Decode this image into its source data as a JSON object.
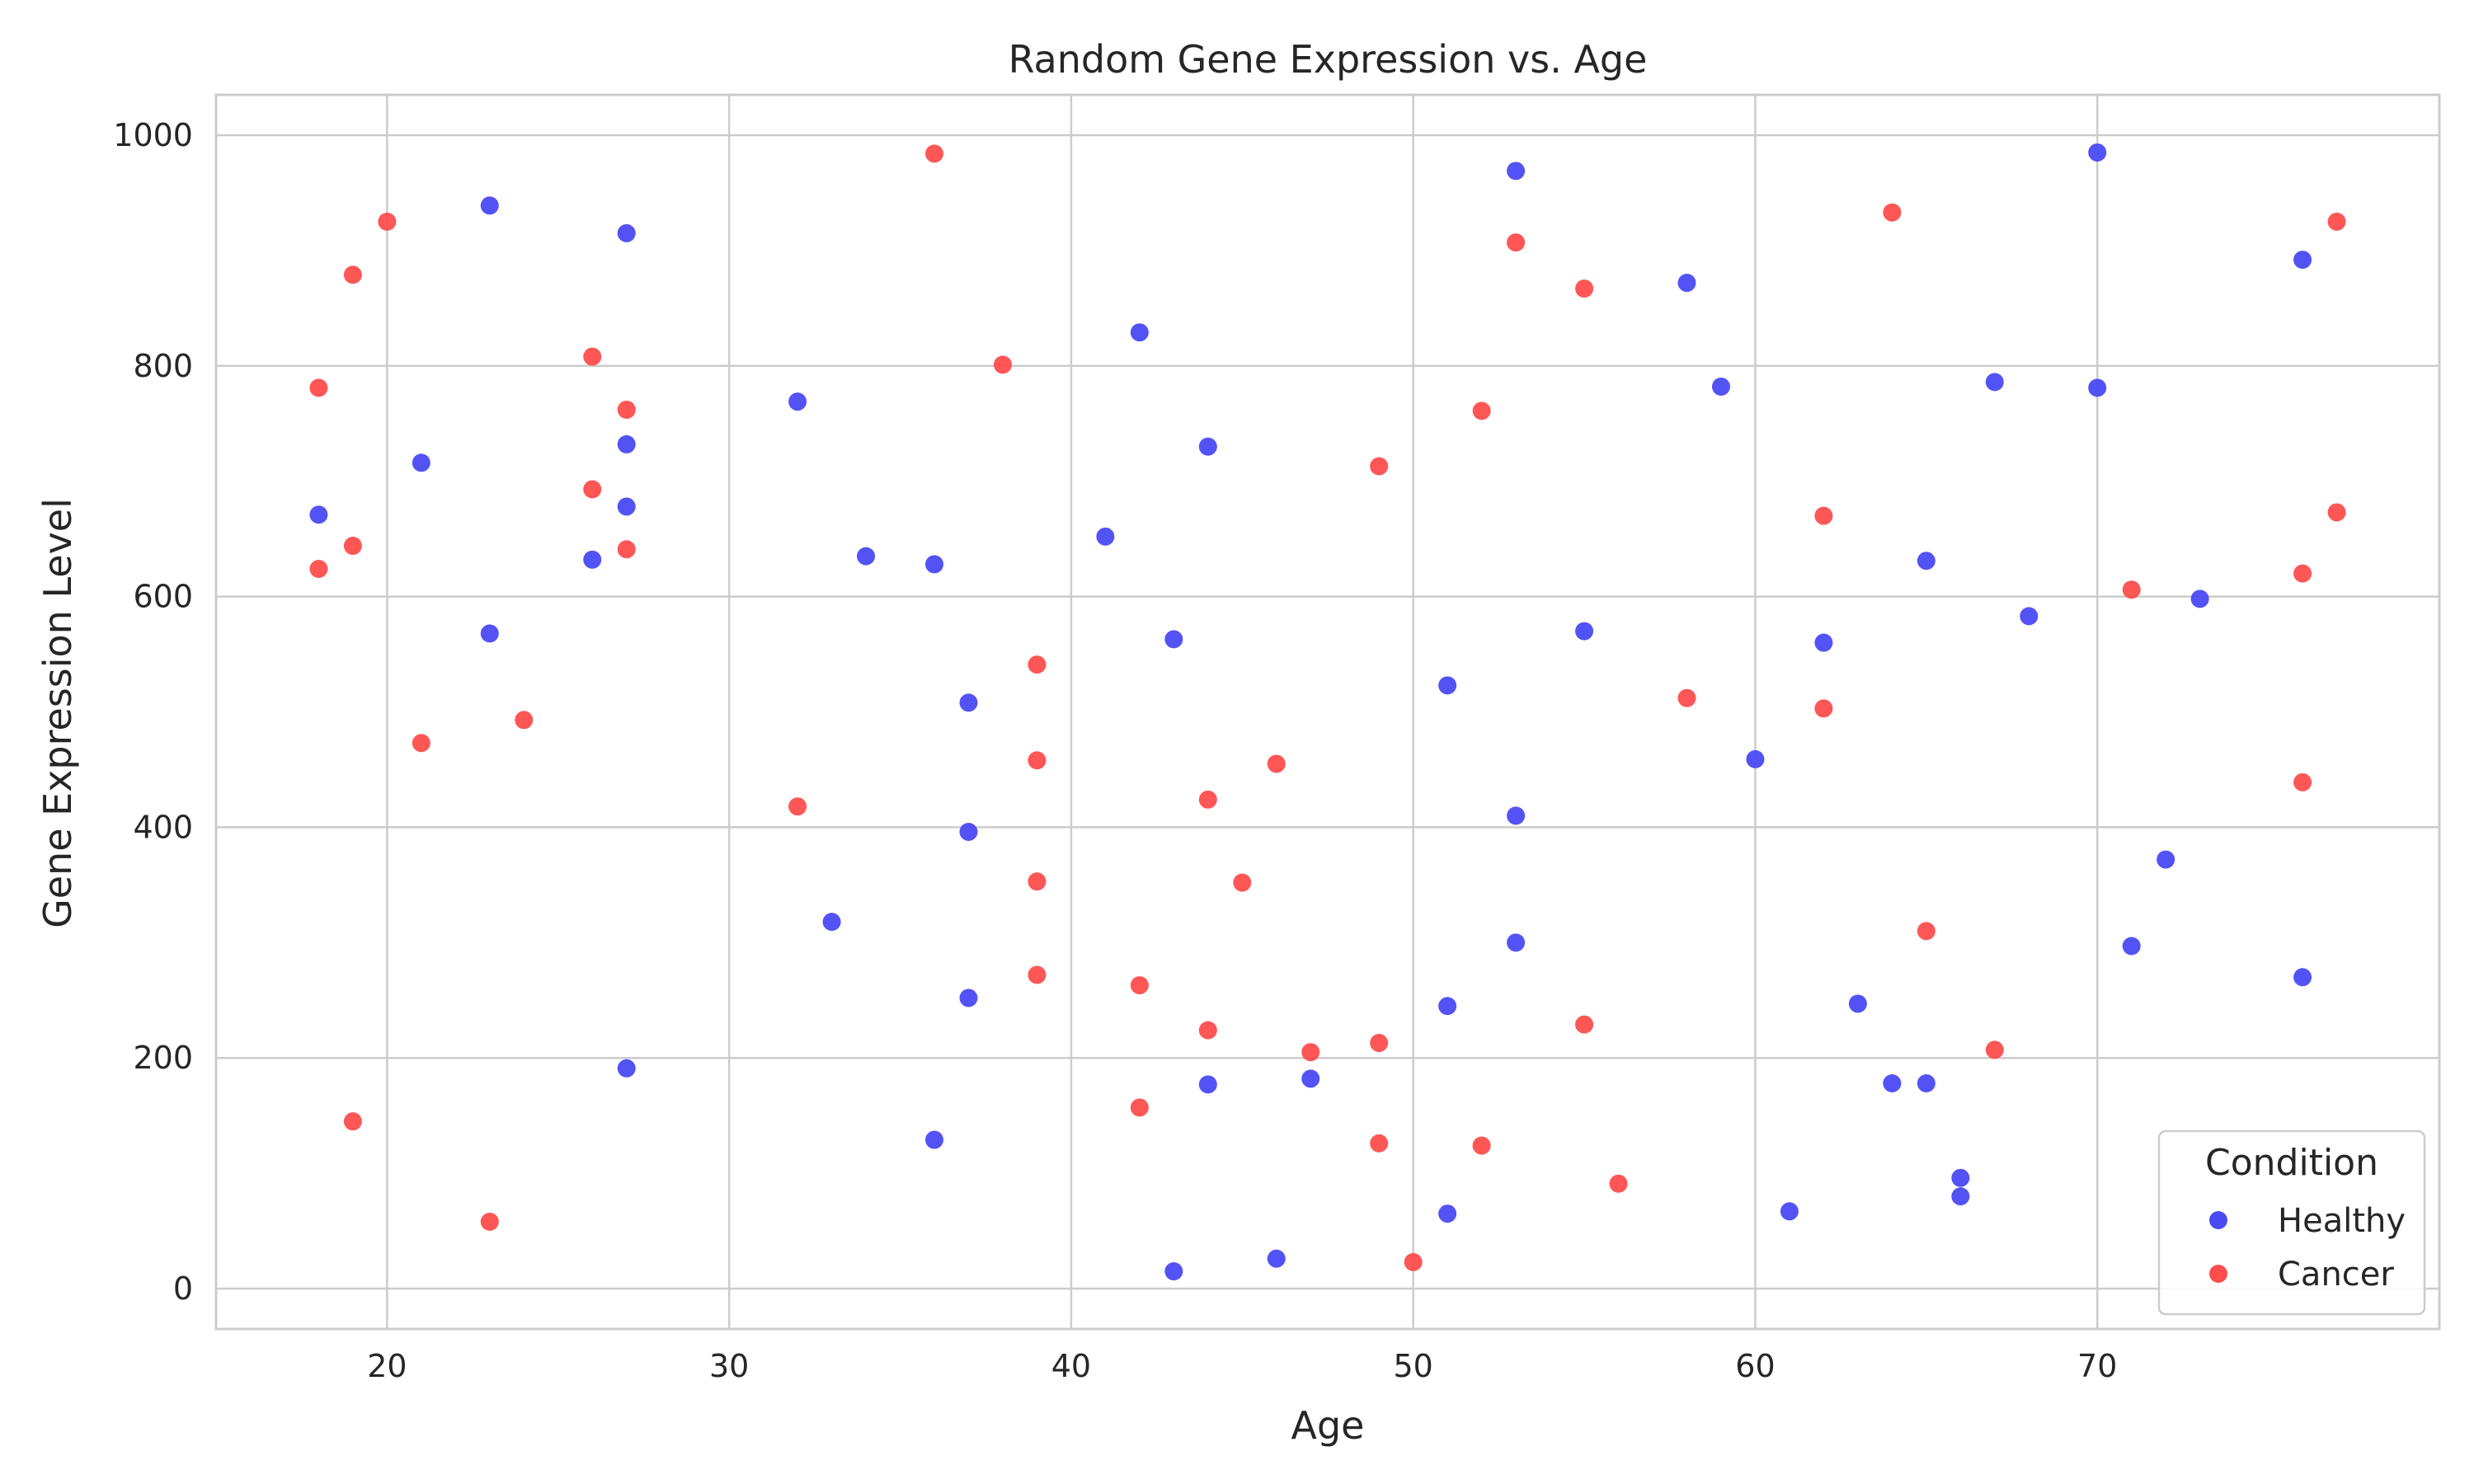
{
  "chart_data": {
    "type": "scatter",
    "title": "Random Gene Expression vs. Age",
    "xlabel": "Age",
    "ylabel": "Gene Expression Level",
    "xlim": [
      15,
      80
    ],
    "ylim": [
      -35,
      1035
    ],
    "xticks": [
      20,
      30,
      40,
      50,
      60,
      70
    ],
    "yticks": [
      0,
      200,
      400,
      600,
      800,
      1000
    ],
    "grid": true,
    "legend": {
      "title": "Condition",
      "position": "bottom-right"
    },
    "series": [
      {
        "name": "Healthy",
        "color": "#4a4af4",
        "points": [
          [
            18,
            671
          ],
          [
            21,
            716
          ],
          [
            23,
            939
          ],
          [
            23,
            568
          ],
          [
            26,
            632
          ],
          [
            27,
            915
          ],
          [
            27,
            732
          ],
          [
            27,
            678
          ],
          [
            27,
            191
          ],
          [
            32,
            769
          ],
          [
            33,
            318
          ],
          [
            34,
            635
          ],
          [
            36,
            628
          ],
          [
            36,
            129
          ],
          [
            37,
            508
          ],
          [
            37,
            396
          ],
          [
            37,
            252
          ],
          [
            41,
            652
          ],
          [
            42,
            829
          ],
          [
            43,
            563
          ],
          [
            43,
            15
          ],
          [
            44,
            730
          ],
          [
            44,
            177
          ],
          [
            46,
            26
          ],
          [
            47,
            182
          ],
          [
            51,
            523
          ],
          [
            51,
            245
          ],
          [
            51,
            65
          ],
          [
            53,
            969
          ],
          [
            53,
            410
          ],
          [
            53,
            300
          ],
          [
            55,
            570
          ],
          [
            58,
            872
          ],
          [
            59,
            782
          ],
          [
            60,
            459
          ],
          [
            61,
            67
          ],
          [
            62,
            560
          ],
          [
            63,
            247
          ],
          [
            64,
            178
          ],
          [
            65,
            631
          ],
          [
            65,
            178
          ],
          [
            66,
            96
          ],
          [
            66,
            80
          ],
          [
            67,
            786
          ],
          [
            68,
            583
          ],
          [
            70,
            985
          ],
          [
            70,
            781
          ],
          [
            71,
            297
          ],
          [
            72,
            372
          ],
          [
            73,
            598
          ],
          [
            76,
            892
          ],
          [
            76,
            270
          ]
        ]
      },
      {
        "name": "Cancer",
        "color": "#ff4d4d",
        "points": [
          [
            18,
            781
          ],
          [
            18,
            624
          ],
          [
            19,
            879
          ],
          [
            19,
            644
          ],
          [
            19,
            145
          ],
          [
            20,
            925
          ],
          [
            21,
            473
          ],
          [
            23,
            58
          ],
          [
            24,
            493
          ],
          [
            26,
            808
          ],
          [
            26,
            693
          ],
          [
            27,
            762
          ],
          [
            27,
            641
          ],
          [
            32,
            418
          ],
          [
            36,
            984
          ],
          [
            38,
            801
          ],
          [
            39,
            541
          ],
          [
            39,
            458
          ],
          [
            39,
            353
          ],
          [
            39,
            272
          ],
          [
            42,
            263
          ],
          [
            42,
            157
          ],
          [
            44,
            424
          ],
          [
            44,
            224
          ],
          [
            45,
            352
          ],
          [
            46,
            455
          ],
          [
            47,
            205
          ],
          [
            49,
            713
          ],
          [
            49,
            213
          ],
          [
            49,
            126
          ],
          [
            50,
            23
          ],
          [
            52,
            761
          ],
          [
            52,
            124
          ],
          [
            53,
            907
          ],
          [
            55,
            867
          ],
          [
            55,
            229
          ],
          [
            56,
            91
          ],
          [
            58,
            512
          ],
          [
            62,
            670
          ],
          [
            62,
            503
          ],
          [
            64,
            933
          ],
          [
            65,
            310
          ],
          [
            67,
            207
          ],
          [
            71,
            606
          ],
          [
            76,
            620
          ],
          [
            76,
            439
          ],
          [
            77,
            925
          ],
          [
            77,
            673
          ]
        ]
      }
    ]
  }
}
